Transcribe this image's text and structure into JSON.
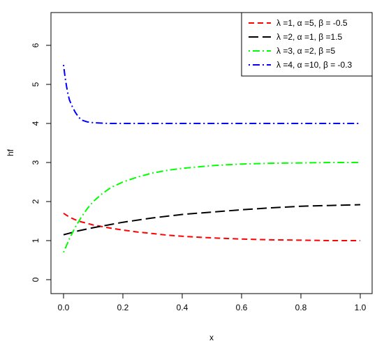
{
  "chart_data": {
    "type": "line",
    "title": "",
    "xlabel": "x",
    "ylabel": "hf",
    "xlim": [
      0,
      1
    ],
    "ylim": [
      0,
      6
    ],
    "x_ticks": [
      "0.0",
      "0.2",
      "0.4",
      "0.6",
      "0.8",
      "1.0"
    ],
    "y_ticks": [
      "0",
      "1",
      "2",
      "3",
      "4",
      "5",
      "6"
    ],
    "legend_position": "top-right",
    "grid": false,
    "series": [
      {
        "name": "λ =1, α =5, β = -0.5",
        "color": "#ff0000",
        "dash": "dashed",
        "x": [
          0,
          0.02,
          0.05,
          0.1,
          0.15,
          0.2,
          0.25,
          0.3,
          0.35,
          0.4,
          0.45,
          0.5,
          0.6,
          0.7,
          0.8,
          0.9,
          1.0
        ],
        "y": [
          1.7,
          1.6,
          1.5,
          1.4,
          1.33,
          1.27,
          1.22,
          1.18,
          1.14,
          1.11,
          1.09,
          1.07,
          1.04,
          1.02,
          1.01,
          1.0,
          1.0
        ]
      },
      {
        "name": "λ =2, α =1, β =1.5",
        "color": "#000000",
        "dash": "longdash",
        "x": [
          0,
          0.05,
          0.1,
          0.15,
          0.2,
          0.3,
          0.4,
          0.5,
          0.6,
          0.7,
          0.8,
          0.9,
          1.0
        ],
        "y": [
          1.15,
          1.25,
          1.33,
          1.4,
          1.47,
          1.58,
          1.67,
          1.73,
          1.79,
          1.84,
          1.88,
          1.9,
          1.92
        ]
      },
      {
        "name": "λ =3, α =2, β =5",
        "color": "#00ff00",
        "dash": "dotdash",
        "x": [
          0,
          0.02,
          0.04,
          0.06,
          0.08,
          0.1,
          0.13,
          0.16,
          0.2,
          0.25,
          0.3,
          0.35,
          0.4,
          0.5,
          0.6,
          0.7,
          0.8,
          0.9,
          1.0
        ],
        "y": [
          0.7,
          1.05,
          1.35,
          1.6,
          1.82,
          2.0,
          2.2,
          2.36,
          2.5,
          2.63,
          2.73,
          2.8,
          2.85,
          2.92,
          2.96,
          2.98,
          2.99,
          3.0,
          3.0
        ]
      },
      {
        "name": "λ =4, α =10, β = -0.3",
        "color": "#0000ff",
        "dash": "dotdash",
        "x": [
          0,
          0.005,
          0.01,
          0.015,
          0.02,
          0.03,
          0.04,
          0.05,
          0.06,
          0.08,
          0.1,
          0.15,
          0.2,
          0.4,
          0.6,
          0.8,
          1.0
        ],
        "y": [
          5.5,
          5.2,
          4.95,
          4.75,
          4.6,
          4.42,
          4.28,
          4.17,
          4.09,
          4.04,
          4.02,
          4.0,
          4.0,
          4.0,
          4.0,
          4.0,
          4.0
        ]
      }
    ]
  }
}
